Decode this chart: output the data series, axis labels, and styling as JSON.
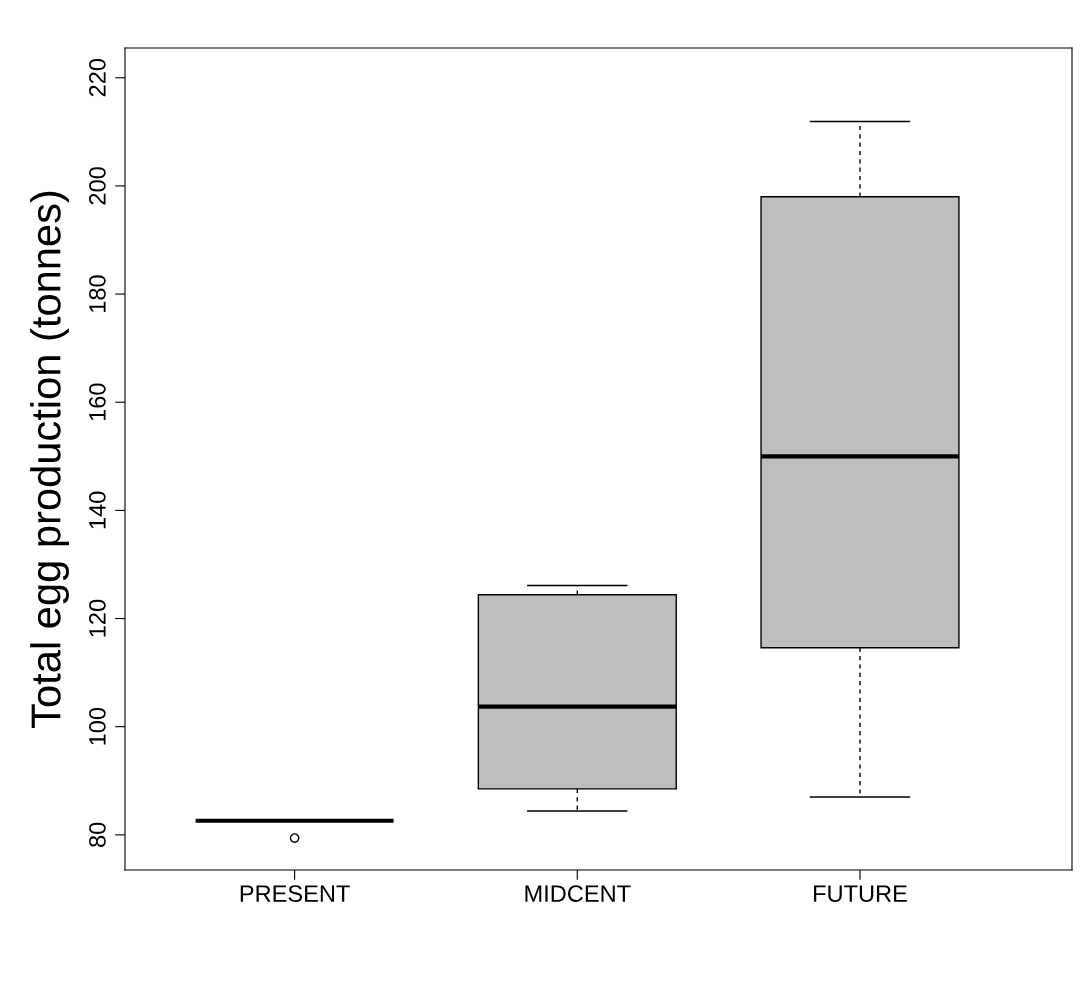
{
  "chart_data": {
    "type": "box",
    "ylabel": "Total egg production (tonnes)",
    "categories": [
      "PRESENT",
      "MIDCENT",
      "FUTURE"
    ],
    "boxes": [
      {
        "low": 82.6,
        "q1": 82.6,
        "median": 82.6,
        "q3": 82.6,
        "high": 82.6,
        "outliers": [
          79.4
        ]
      },
      {
        "low": 84.4,
        "q1": 88.5,
        "median": 103.7,
        "q3": 124.4,
        "high": 126.1
      },
      {
        "low": 87.0,
        "q1": 114.6,
        "median": 150.0,
        "q3": 198.0,
        "high": 211.9
      }
    ],
    "color": "#bebebe",
    "ylim": [
      73.5,
      225.5
    ],
    "yticks": [
      80,
      100,
      120,
      140,
      160,
      180,
      200,
      220
    ],
    "grid": false,
    "line_style": "dashed"
  }
}
